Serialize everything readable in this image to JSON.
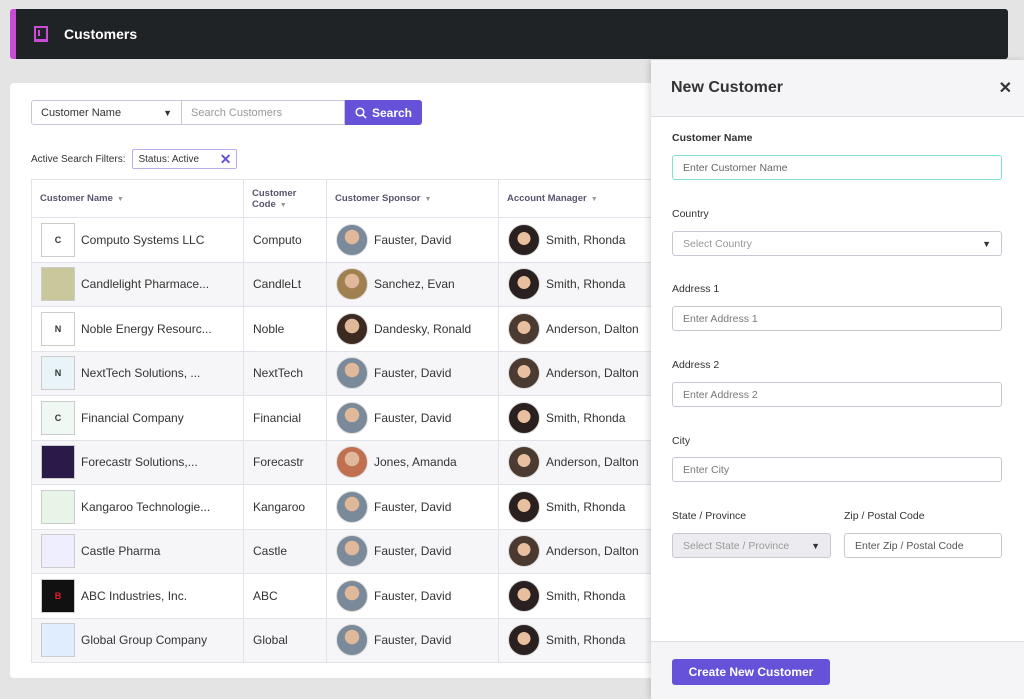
{
  "header": {
    "title": "Customers",
    "icon": "building-icon"
  },
  "search": {
    "field_select": "Customer Name",
    "placeholder": "Search Customers",
    "button": "Search"
  },
  "filters": {
    "label": "Active Search Filters:",
    "chips": [
      "Status: Active"
    ]
  },
  "table": {
    "columns": [
      "Customer Name",
      "Customer Code",
      "Customer Sponsor",
      "Account Manager"
    ],
    "rows": [
      {
        "name": "Computo Systems LLC",
        "logo": "C",
        "logo_color": "#ffffff",
        "code": "Computo",
        "sponsor": "Fauster, David",
        "sponsor_color": "#7a8a9a",
        "manager": "Smith, Rhonda",
        "manager_color": "#2a2020"
      },
      {
        "name": "Candlelight Pharmace...",
        "logo": "",
        "logo_color": "#c8c89a",
        "code": "CandleLt",
        "sponsor": "Sanchez, Evan",
        "sponsor_color": "#a08050",
        "manager": "Smith, Rhonda",
        "manager_color": "#2a2020"
      },
      {
        "name": "Noble Energy Resourc...",
        "logo": "N",
        "logo_color": "#ffffff",
        "code": "Noble",
        "sponsor": "Dandesky, Ronald",
        "sponsor_color": "#3a2a20",
        "manager": "Anderson, Dalton",
        "manager_color": "#4a3a30"
      },
      {
        "name": "NextTech Solutions, ...",
        "logo": "N",
        "logo_color": "#e8f4f8",
        "code": "NextTech",
        "sponsor": "Fauster, David",
        "sponsor_color": "#7a8a9a",
        "manager": "Anderson, Dalton",
        "manager_color": "#4a3a30"
      },
      {
        "name": "Financial Company",
        "logo": "C",
        "logo_color": "#f0f8f4",
        "code": "Financial",
        "sponsor": "Fauster, David",
        "sponsor_color": "#7a8a9a",
        "manager": "Smith, Rhonda",
        "manager_color": "#2a2020"
      },
      {
        "name": "Forecastr Solutions,...",
        "logo": "",
        "logo_color": "#2a1a4a",
        "code": "Forecastr",
        "sponsor": "Jones, Amanda",
        "sponsor_color": "#c07050",
        "manager": "Anderson, Dalton",
        "manager_color": "#4a3a30"
      },
      {
        "name": "Kangaroo Technologie...",
        "logo": "",
        "logo_color": "#e8f4e8",
        "code": "Kangaroo",
        "sponsor": "Fauster, David",
        "sponsor_color": "#7a8a9a",
        "manager": "Smith, Rhonda",
        "manager_color": "#2a2020"
      },
      {
        "name": "Castle Pharma",
        "logo": "",
        "logo_color": "#eef",
        "code": "Castle",
        "sponsor": "Fauster, David",
        "sponsor_color": "#7a8a9a",
        "manager": "Anderson, Dalton",
        "manager_color": "#4a3a30"
      },
      {
        "name": "ABC Industries, Inc.",
        "logo": "B",
        "logo_color": "#111111",
        "code": "ABC",
        "sponsor": "Fauster, David",
        "sponsor_color": "#7a8a9a",
        "manager": "Smith, Rhonda",
        "manager_color": "#2a2020"
      },
      {
        "name": "Global Group Company",
        "logo": "",
        "logo_color": "#e0ecff",
        "code": "Global",
        "sponsor": "Fauster, David",
        "sponsor_color": "#7a8a9a",
        "manager": "Smith, Rhonda",
        "manager_color": "#2a2020"
      }
    ]
  },
  "panel": {
    "title": "New Customer",
    "customer_name": {
      "label": "Customer Name",
      "placeholder": "Enter Customer Name"
    },
    "country": {
      "label": "Country",
      "placeholder": "Select Country"
    },
    "address1": {
      "label": "Address 1",
      "placeholder": "Enter Address 1"
    },
    "address2": {
      "label": "Address 2",
      "placeholder": "Enter Address 2"
    },
    "city": {
      "label": "City",
      "placeholder": "Enter City"
    },
    "state": {
      "label": "State / Province",
      "placeholder": "Select State / Province"
    },
    "zip": {
      "label": "Zip / Postal Code",
      "placeholder": "Enter Zip / Postal Code"
    },
    "submit": "Create New Customer"
  },
  "colors": {
    "accent": "#6552d9",
    "header_bg": "#1f2326",
    "header_stripe": "#c94bd6",
    "focus": "#7fe0cf"
  }
}
